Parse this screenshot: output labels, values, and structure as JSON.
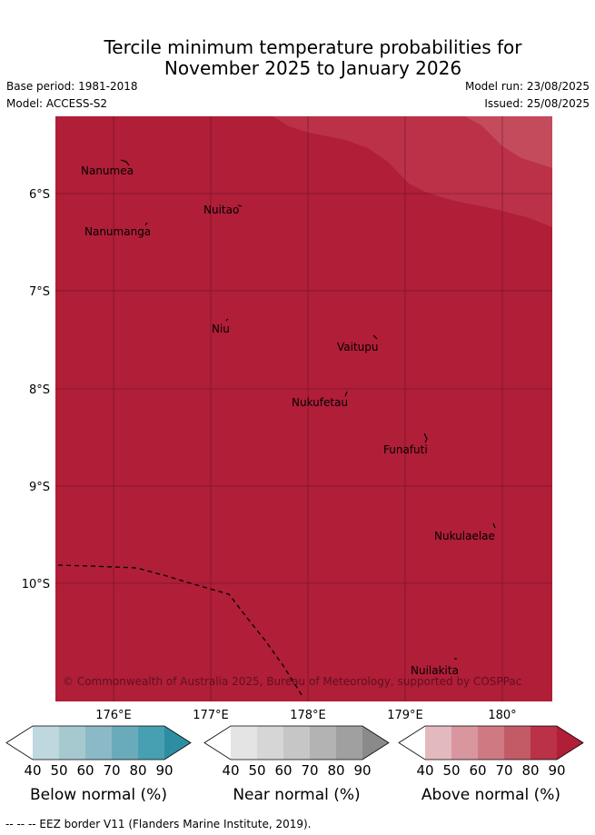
{
  "title": {
    "line1": "Tercile minimum temperature probabilities for",
    "line2": "November 2025 to January 2026"
  },
  "meta": {
    "base_period": "Base period: 1981-2018",
    "model": "Model: ACCESS-S2",
    "model_run": "Model run: 23/08/2025",
    "issued": "Issued: 25/08/2025"
  },
  "map": {
    "lon_labels": [
      "176°E",
      "177°E",
      "178°E",
      "179°E",
      "180°"
    ],
    "lat_labels": [
      "6°S",
      "7°S",
      "8°S",
      "9°S",
      "10°S"
    ],
    "places": [
      "Nanumea",
      "Nuitao",
      "Nanumanga",
      "Niu",
      "Vaitupu",
      "Nukufetau",
      "Funafuti",
      "Nukulaelae",
      "Nuilakita"
    ],
    "copyright": "© Commonwealth of Australia 2025, Bureau of Meteorology, supported by COSPPac",
    "colors": {
      "above_90": "#b01e38",
      "above_80": "#bb3148",
      "above_70": "#c34b5c",
      "ocean_bg": "#ffffff"
    }
  },
  "legends": [
    {
      "label": "Below normal (%)",
      "ticks": [
        "40",
        "50",
        "60",
        "70",
        "80",
        "90"
      ],
      "colors": [
        "#bfd7de",
        "#a6c9d0",
        "#8bbac6",
        "#6aabbb",
        "#47a0b2",
        "#2d8ea1"
      ]
    },
    {
      "label": "Near normal (%)",
      "ticks": [
        "40",
        "50",
        "60",
        "70",
        "80",
        "90"
      ],
      "colors": [
        "#e4e4e4",
        "#d6d6d6",
        "#c6c6c6",
        "#b3b3b3",
        "#a0a0a0",
        "#8a8a8a"
      ]
    },
    {
      "label": "Above normal (%)",
      "ticks": [
        "40",
        "50",
        "60",
        "70",
        "80",
        "90"
      ],
      "colors": [
        "#e3b9c0",
        "#d9969f",
        "#cf7a83",
        "#c35b66",
        "#bb3148",
        "#b01e38"
      ]
    }
  ],
  "footnote": "--  --  -- EEZ border V11 (Flanders Marine Institute, 2019)."
}
